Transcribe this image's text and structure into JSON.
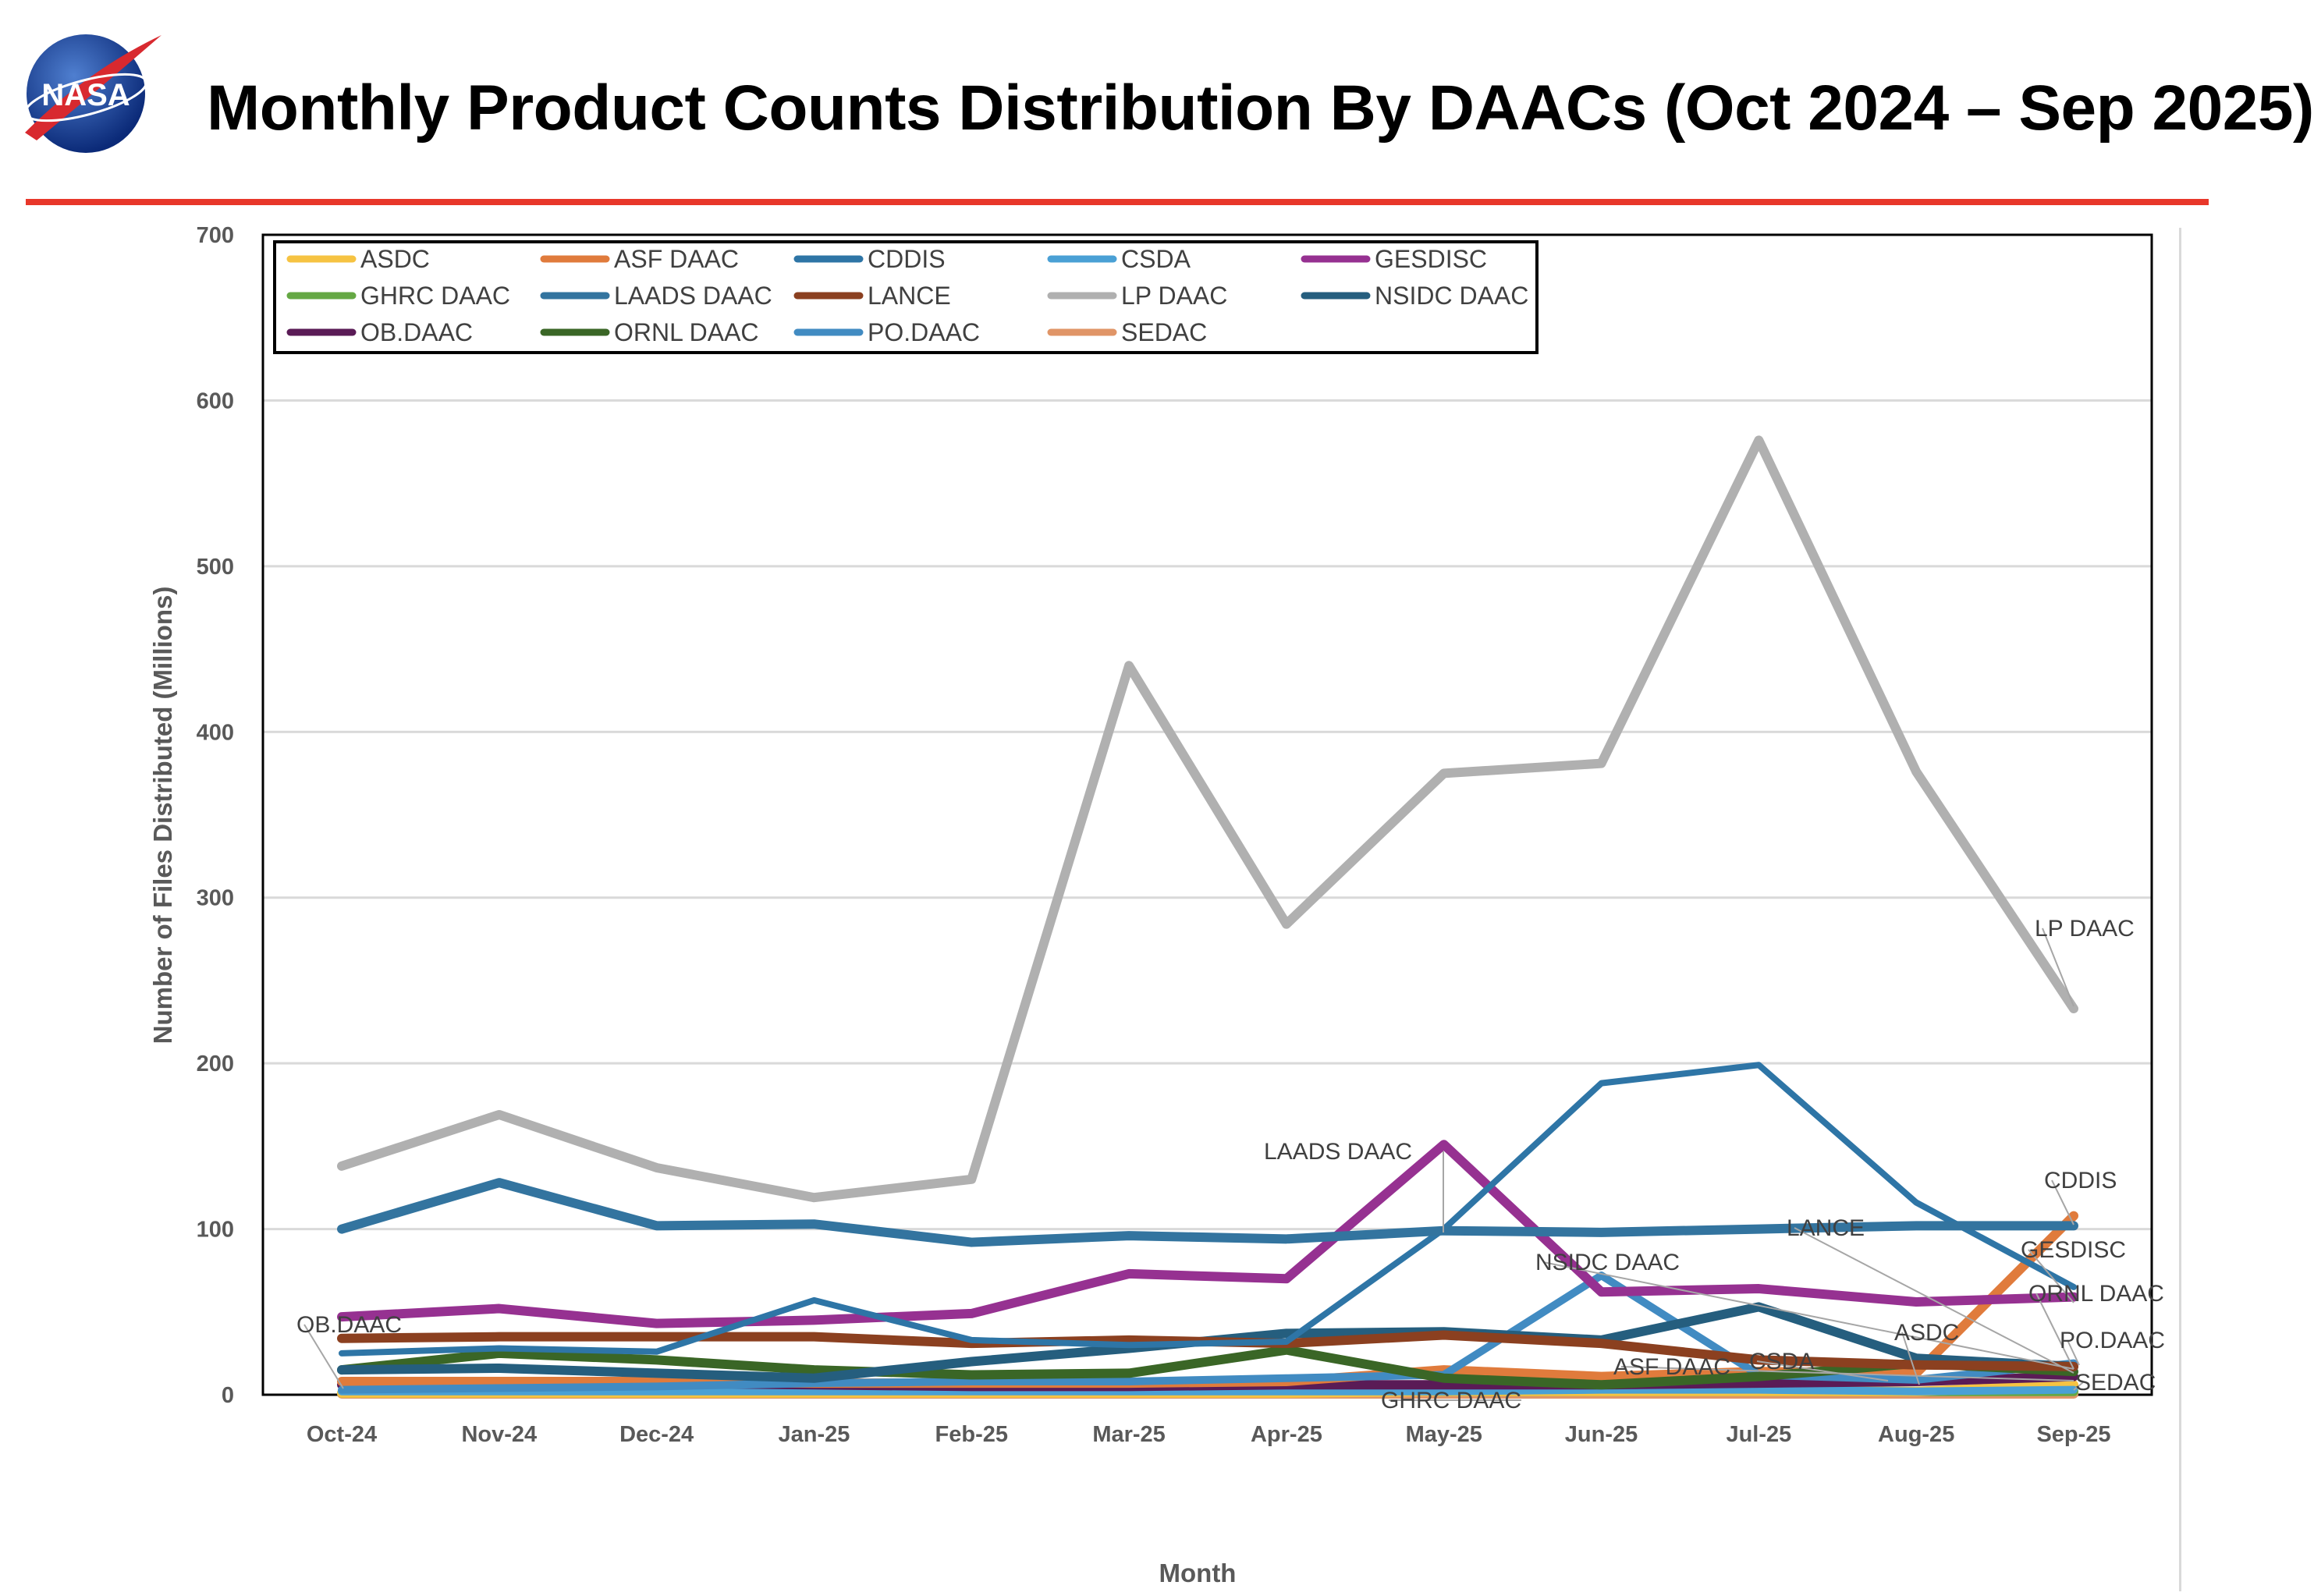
{
  "header": {
    "title": "Monthly Product Counts Distribution By DAACs (Oct 2024 – Sep 2025)",
    "logo_text": "NASA",
    "accent_color": "#e8372a"
  },
  "chart_data": {
    "type": "line",
    "title": "",
    "xlabel": "Month",
    "ylabel": "Number of Files Distributed (Millions)",
    "ylim": [
      0,
      700
    ],
    "yticks": [
      "0",
      "100",
      "200",
      "300",
      "400",
      "500",
      "600",
      "700"
    ],
    "grid": true,
    "legend_position": "top-left",
    "categories": [
      "Oct-24",
      "Nov-24",
      "Dec-24",
      "Jan-25",
      "Feb-25",
      "Mar-25",
      "Apr-25",
      "May-25",
      "Jun-25",
      "Jul-25",
      "Aug-25",
      "Sep-25"
    ],
    "series": [
      {
        "name": "ASDC",
        "color": "#f6c342",
        "values": [
          1,
          1,
          1,
          1,
          1,
          1,
          1,
          2,
          2,
          2,
          2,
          6
        ]
      },
      {
        "name": "ASF DAAC",
        "color": "#e07b3c",
        "values": [
          8,
          8,
          8,
          7,
          7,
          7,
          8,
          15,
          11,
          14,
          13,
          108
        ]
      },
      {
        "name": "CDDIS",
        "color": "#2e75a6",
        "values": [
          25,
          28,
          26,
          57,
          33,
          30,
          32,
          100,
          188,
          199,
          116,
          65
        ]
      },
      {
        "name": "CSDA",
        "color": "#4aa0d5",
        "values": [
          2,
          2,
          2,
          2,
          2,
          2,
          2,
          2,
          3,
          3,
          2,
          3
        ]
      },
      {
        "name": "GESDISC",
        "color": "#963191",
        "values": [
          47,
          52,
          43,
          45,
          49,
          73,
          70,
          151,
          62,
          64,
          56,
          59
        ]
      },
      {
        "name": "GHRC DAAC",
        "color": "#65a844",
        "values": [
          1,
          1,
          1,
          1,
          2,
          2,
          3,
          2,
          2,
          2,
          2,
          2
        ]
      },
      {
        "name": "LAADS DAAC",
        "color": "#33749f",
        "values": [
          100,
          128,
          102,
          103,
          92,
          96,
          94,
          99,
          98,
          100,
          102,
          102
        ]
      },
      {
        "name": "LANCE",
        "color": "#8b4020",
        "values": [
          34,
          35,
          35,
          35,
          31,
          33,
          31,
          36,
          31,
          21,
          18,
          17
        ]
      },
      {
        "name": "LP DAAC",
        "color": "#b0b0b0",
        "values": [
          138,
          169,
          137,
          119,
          130,
          440,
          284,
          375,
          381,
          576,
          376,
          233
        ]
      },
      {
        "name": "NSIDC DAAC",
        "color": "#255e7e",
        "values": [
          15,
          16,
          13,
          10,
          20,
          28,
          37,
          38,
          33,
          53,
          22,
          17
        ]
      },
      {
        "name": "OB.DAAC",
        "color": "#5a1b56",
        "values": [
          6,
          7,
          7,
          6,
          5,
          5,
          6,
          6,
          6,
          7,
          8,
          11
        ]
      },
      {
        "name": "ORNL DAAC",
        "color": "#3a6626",
        "values": [
          15,
          25,
          21,
          15,
          12,
          13,
          27,
          10,
          6,
          11,
          19,
          14
        ]
      },
      {
        "name": "PO.DAAC",
        "color": "#418bc2",
        "values": [
          3,
          4,
          5,
          7,
          8,
          8,
          10,
          12,
          72,
          12,
          9,
          19
        ]
      },
      {
        "name": "SEDAC",
        "color": "#e09567",
        "values": [
          0.5,
          0.5,
          0.5,
          0.5,
          0.5,
          0.5,
          0.5,
          0.5,
          0.5,
          0.5,
          0.5,
          0.5
        ]
      }
    ],
    "data_labels": [
      {
        "text": "OB.DAAC",
        "month": "Oct-24"
      },
      {
        "text": "LAADS DAAC",
        "month": "May-25"
      },
      {
        "text": "GHRC DAAC",
        "month": "May-25"
      },
      {
        "text": "NSIDC DAAC",
        "month": "Jun-25"
      },
      {
        "text": "ASF DAAC",
        "month": "Jun-25"
      },
      {
        "text": "CSDA",
        "month": "Jul-25"
      },
      {
        "text": "LANCE",
        "month": "Jul-25"
      },
      {
        "text": "ASDC",
        "month": "Aug-25"
      },
      {
        "text": "LP DAAC",
        "month": "Sep-25"
      },
      {
        "text": "CDDIS",
        "month": "Sep-25"
      },
      {
        "text": "GESDISC",
        "month": "Sep-25"
      },
      {
        "text": "ORNL DAAC",
        "month": "Sep-25"
      },
      {
        "text": "PO.DAAC",
        "month": "Sep-25"
      },
      {
        "text": "SEDAC",
        "month": "Sep-25"
      }
    ]
  }
}
